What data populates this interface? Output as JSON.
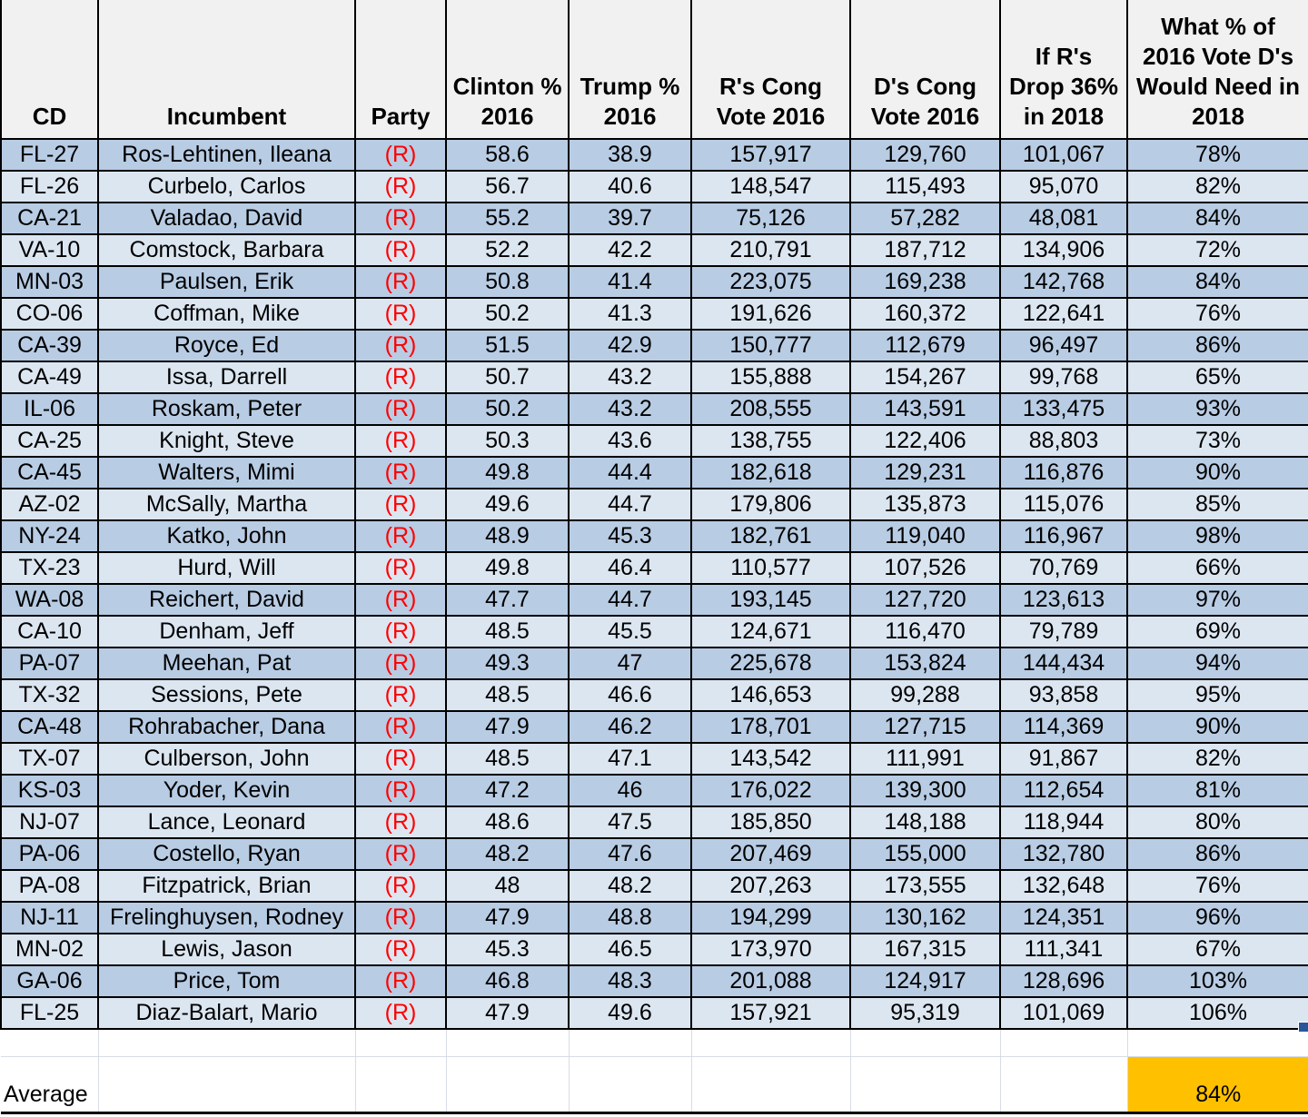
{
  "colors": {
    "row_dark": "#b8cce4",
    "row_light": "#dce6f1",
    "header_bg": "#f1f1f1",
    "party_red": "#fe0000",
    "highlight_orange": "#ffc000",
    "grid_black": "#000000",
    "gridline_gray": "#d6dce6",
    "fill_handle_blue": "#2a5699"
  },
  "table": {
    "columns": [
      {
        "key": "cd",
        "label": "CD"
      },
      {
        "key": "incumbent",
        "label": "Incumbent"
      },
      {
        "key": "party",
        "label": "Party"
      },
      {
        "key": "clinton",
        "label": "Clinton %\n2016"
      },
      {
        "key": "trump",
        "label": "Trump %\n2016"
      },
      {
        "key": "r_vote",
        "label": "R's Cong\nVote 2016"
      },
      {
        "key": "d_vote",
        "label": "D's Cong\nVote 2016"
      },
      {
        "key": "drop",
        "label": "If R's\nDrop 36%\nin 2018"
      },
      {
        "key": "need",
        "label": "What % of\n2016 Vote D's\nWould Need in\n2018"
      }
    ],
    "rows": [
      {
        "cd": "FL-27",
        "incumbent": "Ros-Lehtinen, Ileana",
        "party": "(R)",
        "clinton": "58.6",
        "trump": "38.9",
        "r_vote": "157,917",
        "d_vote": "129,760",
        "drop": "101,067",
        "need": "78%"
      },
      {
        "cd": "FL-26",
        "incumbent": "Curbelo, Carlos",
        "party": "(R)",
        "clinton": "56.7",
        "trump": "40.6",
        "r_vote": "148,547",
        "d_vote": "115,493",
        "drop": "95,070",
        "need": "82%"
      },
      {
        "cd": "CA-21",
        "incumbent": "Valadao, David",
        "party": "(R)",
        "clinton": "55.2",
        "trump": "39.7",
        "r_vote": "75,126",
        "d_vote": "57,282",
        "drop": "48,081",
        "need": "84%"
      },
      {
        "cd": "VA-10",
        "incumbent": "Comstock, Barbara",
        "party": "(R)",
        "clinton": "52.2",
        "trump": "42.2",
        "r_vote": "210,791",
        "d_vote": "187,712",
        "drop": "134,906",
        "need": "72%"
      },
      {
        "cd": "MN-03",
        "incumbent": "Paulsen, Erik",
        "party": "(R)",
        "clinton": "50.8",
        "trump": "41.4",
        "r_vote": "223,075",
        "d_vote": "169,238",
        "drop": "142,768",
        "need": "84%"
      },
      {
        "cd": "CO-06",
        "incumbent": "Coffman, Mike",
        "party": "(R)",
        "clinton": "50.2",
        "trump": "41.3",
        "r_vote": "191,626",
        "d_vote": "160,372",
        "drop": "122,641",
        "need": "76%"
      },
      {
        "cd": "CA-39",
        "incumbent": "Royce, Ed",
        "party": "(R)",
        "clinton": "51.5",
        "trump": "42.9",
        "r_vote": "150,777",
        "d_vote": "112,679",
        "drop": "96,497",
        "need": "86%"
      },
      {
        "cd": "CA-49",
        "incumbent": "Issa, Darrell",
        "party": "(R)",
        "clinton": "50.7",
        "trump": "43.2",
        "r_vote": "155,888",
        "d_vote": "154,267",
        "drop": "99,768",
        "need": "65%"
      },
      {
        "cd": "IL-06",
        "incumbent": "Roskam, Peter",
        "party": "(R)",
        "clinton": "50.2",
        "trump": "43.2",
        "r_vote": "208,555",
        "d_vote": "143,591",
        "drop": "133,475",
        "need": "93%"
      },
      {
        "cd": "CA-25",
        "incumbent": "Knight, Steve",
        "party": "(R)",
        "clinton": "50.3",
        "trump": "43.6",
        "r_vote": "138,755",
        "d_vote": "122,406",
        "drop": "88,803",
        "need": "73%"
      },
      {
        "cd": "CA-45",
        "incumbent": "Walters, Mimi",
        "party": "(R)",
        "clinton": "49.8",
        "trump": "44.4",
        "r_vote": "182,618",
        "d_vote": "129,231",
        "drop": "116,876",
        "need": "90%"
      },
      {
        "cd": "AZ-02",
        "incumbent": "McSally, Martha",
        "party": "(R)",
        "clinton": "49.6",
        "trump": "44.7",
        "r_vote": "179,806",
        "d_vote": "135,873",
        "drop": "115,076",
        "need": "85%"
      },
      {
        "cd": "NY-24",
        "incumbent": "Katko, John",
        "party": "(R)",
        "clinton": "48.9",
        "trump": "45.3",
        "r_vote": "182,761",
        "d_vote": "119,040",
        "drop": "116,967",
        "need": "98%"
      },
      {
        "cd": "TX-23",
        "incumbent": "Hurd, Will",
        "party": "(R)",
        "clinton": "49.8",
        "trump": "46.4",
        "r_vote": "110,577",
        "d_vote": "107,526",
        "drop": "70,769",
        "need": "66%"
      },
      {
        "cd": "WA-08",
        "incumbent": "Reichert, David",
        "party": "(R)",
        "clinton": "47.7",
        "trump": "44.7",
        "r_vote": "193,145",
        "d_vote": "127,720",
        "drop": "123,613",
        "need": "97%"
      },
      {
        "cd": "CA-10",
        "incumbent": "Denham, Jeff",
        "party": "(R)",
        "clinton": "48.5",
        "trump": "45.5",
        "r_vote": "124,671",
        "d_vote": "116,470",
        "drop": "79,789",
        "need": "69%"
      },
      {
        "cd": "PA-07",
        "incumbent": "Meehan, Pat",
        "party": "(R)",
        "clinton": "49.3",
        "trump": "47",
        "r_vote": "225,678",
        "d_vote": "153,824",
        "drop": "144,434",
        "need": "94%"
      },
      {
        "cd": "TX-32",
        "incumbent": "Sessions, Pete",
        "party": "(R)",
        "clinton": "48.5",
        "trump": "46.6",
        "r_vote": "146,653",
        "d_vote": "99,288",
        "drop": "93,858",
        "need": "95%"
      },
      {
        "cd": "CA-48",
        "incumbent": "Rohrabacher, Dana",
        "party": "(R)",
        "clinton": "47.9",
        "trump": "46.2",
        "r_vote": "178,701",
        "d_vote": "127,715",
        "drop": "114,369",
        "need": "90%"
      },
      {
        "cd": "TX-07",
        "incumbent": "Culberson, John",
        "party": "(R)",
        "clinton": "48.5",
        "trump": "47.1",
        "r_vote": "143,542",
        "d_vote": "111,991",
        "drop": "91,867",
        "need": "82%"
      },
      {
        "cd": "KS-03",
        "incumbent": "Yoder, Kevin",
        "party": "(R)",
        "clinton": "47.2",
        "trump": "46",
        "r_vote": "176,022",
        "d_vote": "139,300",
        "drop": "112,654",
        "need": "81%"
      },
      {
        "cd": "NJ-07",
        "incumbent": "Lance, Leonard",
        "party": "(R)",
        "clinton": "48.6",
        "trump": "47.5",
        "r_vote": "185,850",
        "d_vote": "148,188",
        "drop": "118,944",
        "need": "80%"
      },
      {
        "cd": "PA-06",
        "incumbent": "Costello, Ryan",
        "party": "(R)",
        "clinton": "48.2",
        "trump": "47.6",
        "r_vote": "207,469",
        "d_vote": "155,000",
        "drop": "132,780",
        "need": "86%"
      },
      {
        "cd": "PA-08",
        "incumbent": "Fitzpatrick, Brian",
        "party": "(R)",
        "clinton": "48",
        "trump": "48.2",
        "r_vote": "207,263",
        "d_vote": "173,555",
        "drop": "132,648",
        "need": "76%"
      },
      {
        "cd": "NJ-11",
        "incumbent": "Frelinghuysen, Rodney",
        "party": "(R)",
        "clinton": "47.9",
        "trump": "48.8",
        "r_vote": "194,299",
        "d_vote": "130,162",
        "drop": "124,351",
        "need": "96%"
      },
      {
        "cd": "MN-02",
        "incumbent": "Lewis, Jason",
        "party": "(R)",
        "clinton": "45.3",
        "trump": "46.5",
        "r_vote": "173,970",
        "d_vote": "167,315",
        "drop": "111,341",
        "need": "67%"
      },
      {
        "cd": "GA-06",
        "incumbent": "Price, Tom",
        "party": "(R)",
        "clinton": "46.8",
        "trump": "48.3",
        "r_vote": "201,088",
        "d_vote": "124,917",
        "drop": "128,696",
        "need": "103%"
      },
      {
        "cd": "FL-25",
        "incumbent": "Diaz-Balart, Mario",
        "party": "(R)",
        "clinton": "47.9",
        "trump": "49.6",
        "r_vote": "157,921",
        "d_vote": "95,319",
        "drop": "101,069",
        "need": "106%"
      }
    ],
    "footer": {
      "label": "Average",
      "value": "84%"
    }
  }
}
